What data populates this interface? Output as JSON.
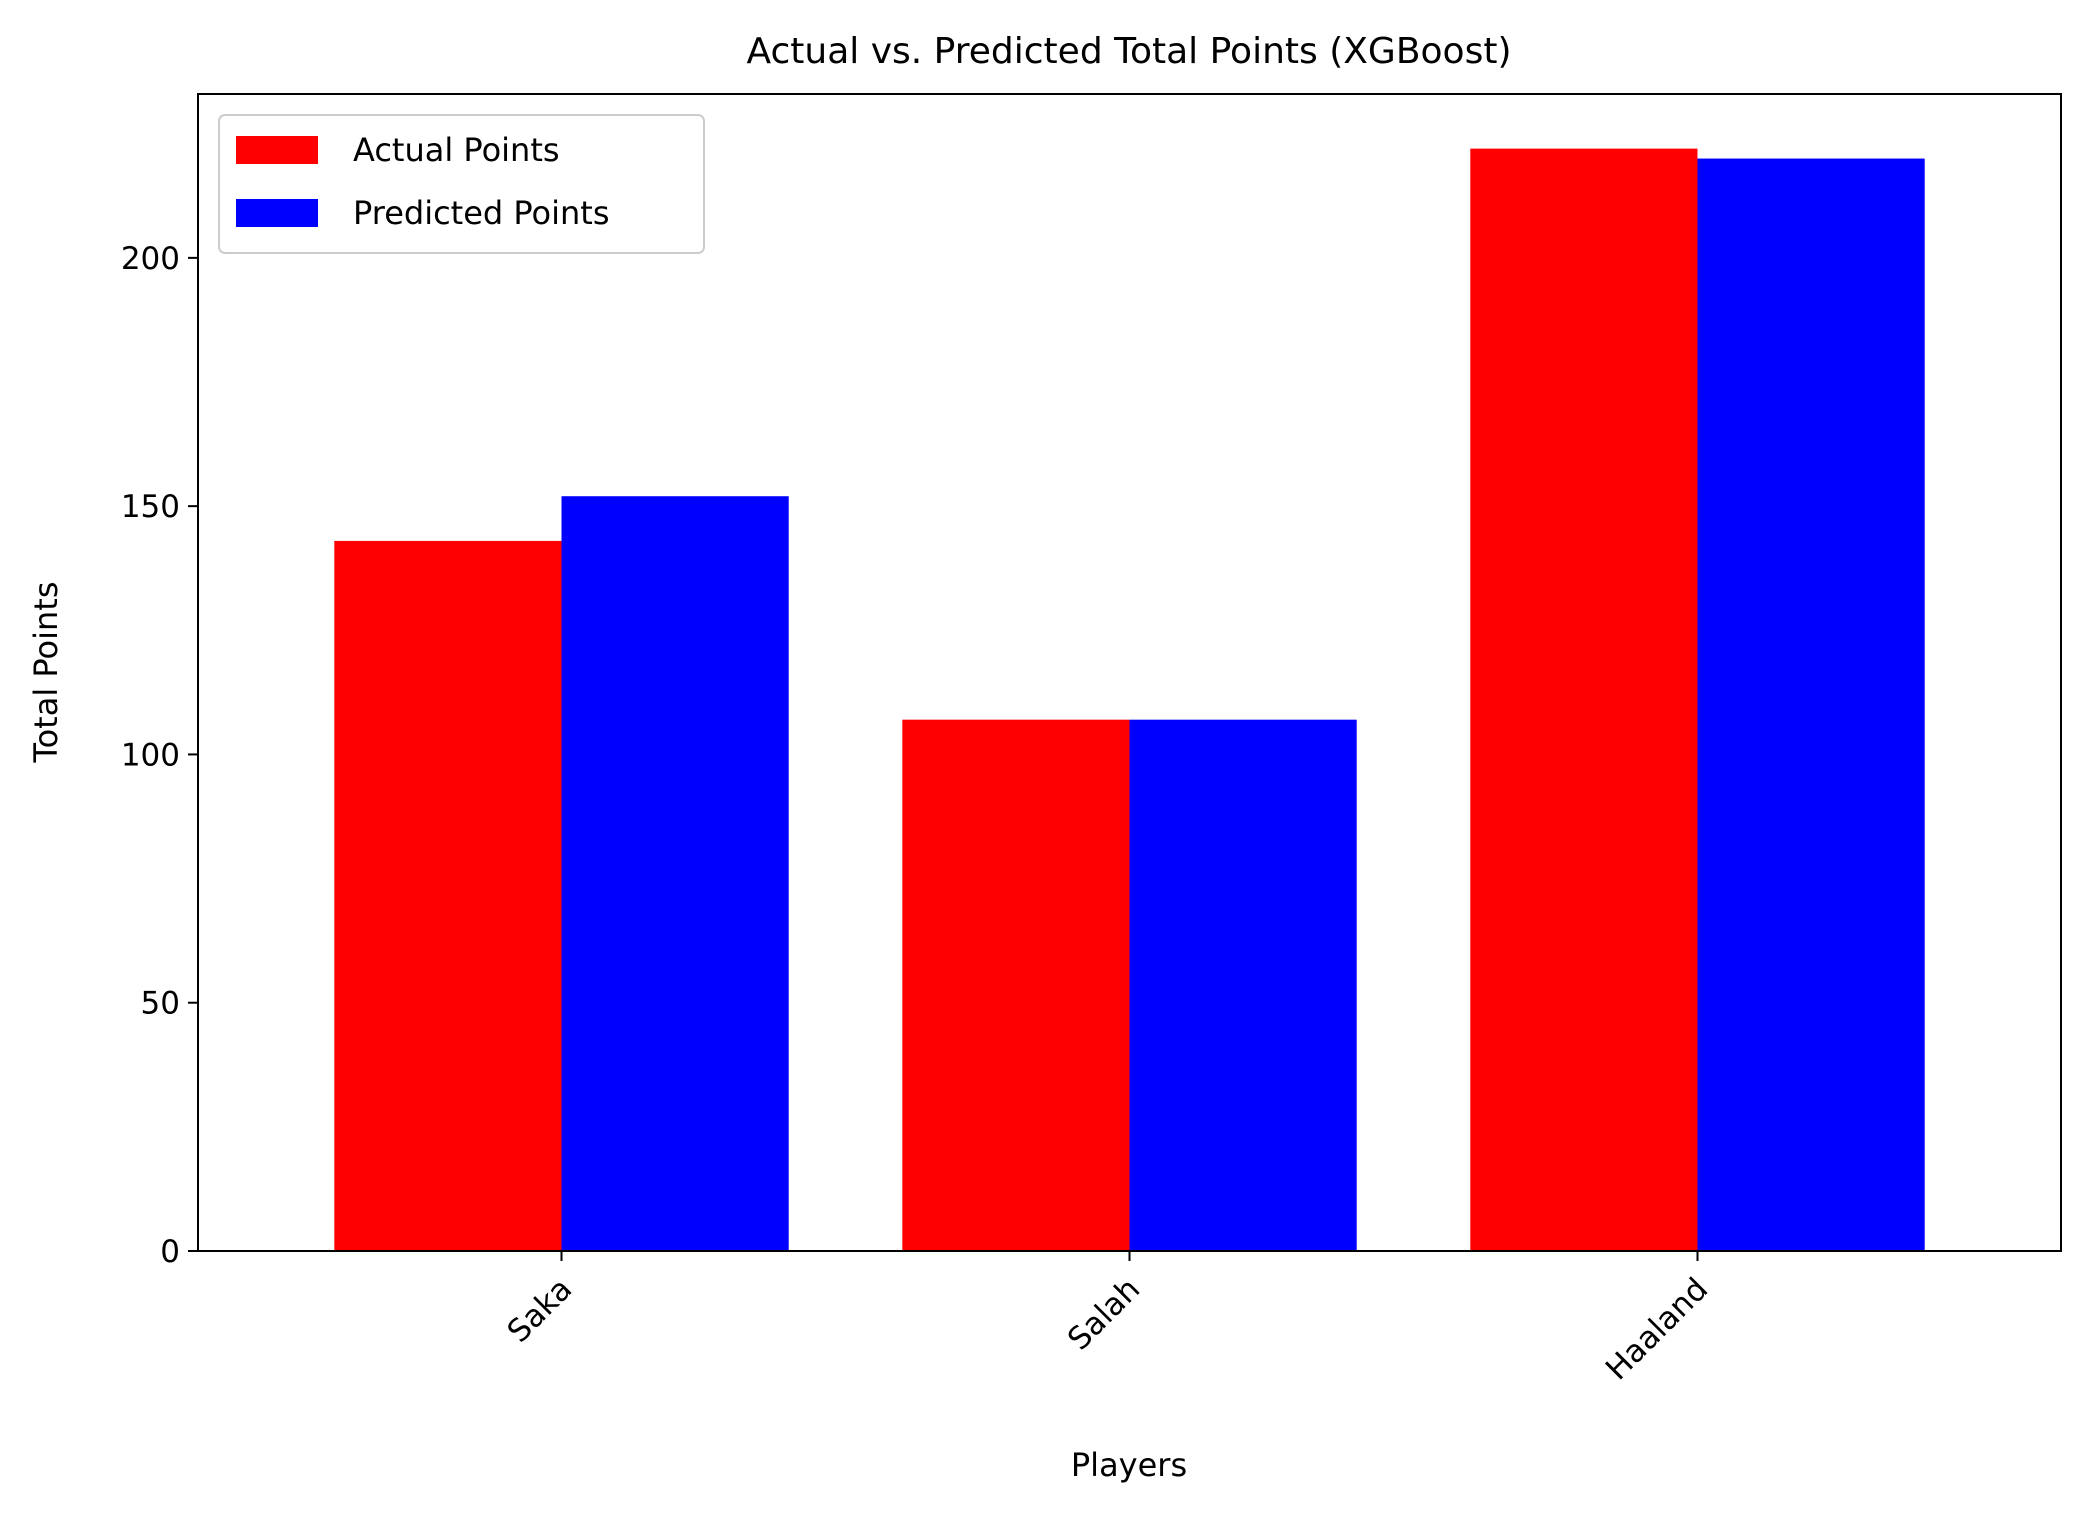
{
  "chart_data": {
    "type": "bar",
    "title": "Actual vs. Predicted Total Points (XGBoost)",
    "xlabel": "Players",
    "ylabel": "Total Points",
    "categories": [
      "Saka",
      "Salah",
      "Haaland"
    ],
    "series": [
      {
        "name": "Actual Points",
        "values": [
          143,
          107,
          222
        ],
        "color": "#ff0000"
      },
      {
        "name": "Predicted Points",
        "values": [
          152,
          107,
          220
        ],
        "color": "#0000ff"
      }
    ],
    "ylim": [
      0,
      233
    ],
    "yticks": [
      0,
      50,
      100,
      150,
      200
    ],
    "grid": false,
    "legend_position": "upper-left"
  }
}
